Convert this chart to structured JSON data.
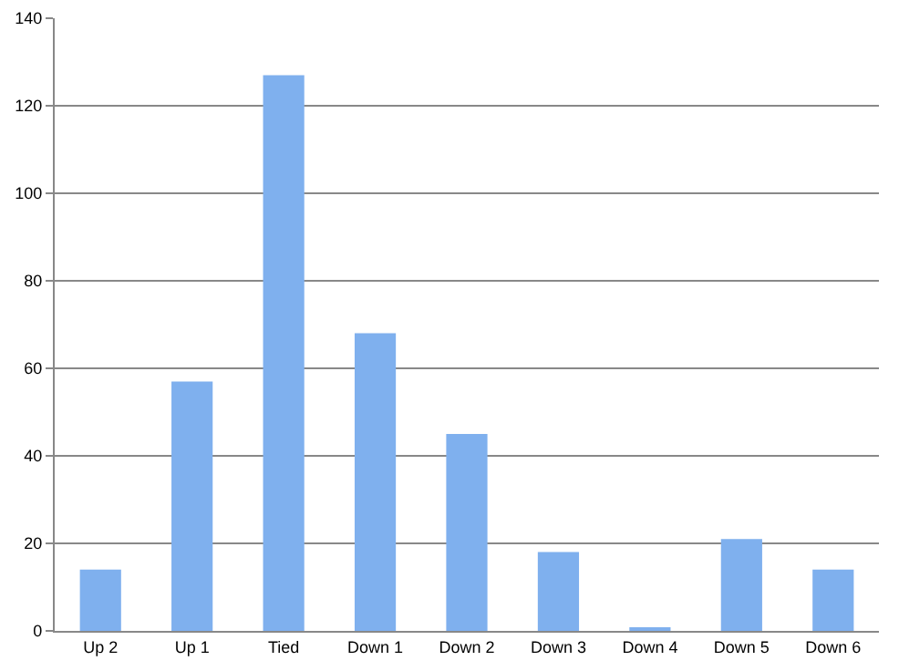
{
  "chart_data": {
    "type": "bar",
    "categories": [
      "Up 2",
      "Up 1",
      "Tied",
      "Down 1",
      "Down 2",
      "Down 3",
      "Down 4",
      "Down 5",
      "Down 6"
    ],
    "values": [
      14,
      57,
      127,
      68,
      45,
      18,
      0.5,
      21,
      14
    ],
    "color": "#7fb0ee",
    "ylim": [
      0,
      140
    ],
    "yticks": [
      0,
      20,
      40,
      60,
      80,
      100,
      120,
      140
    ],
    "grid": "y",
    "legend": false
  }
}
